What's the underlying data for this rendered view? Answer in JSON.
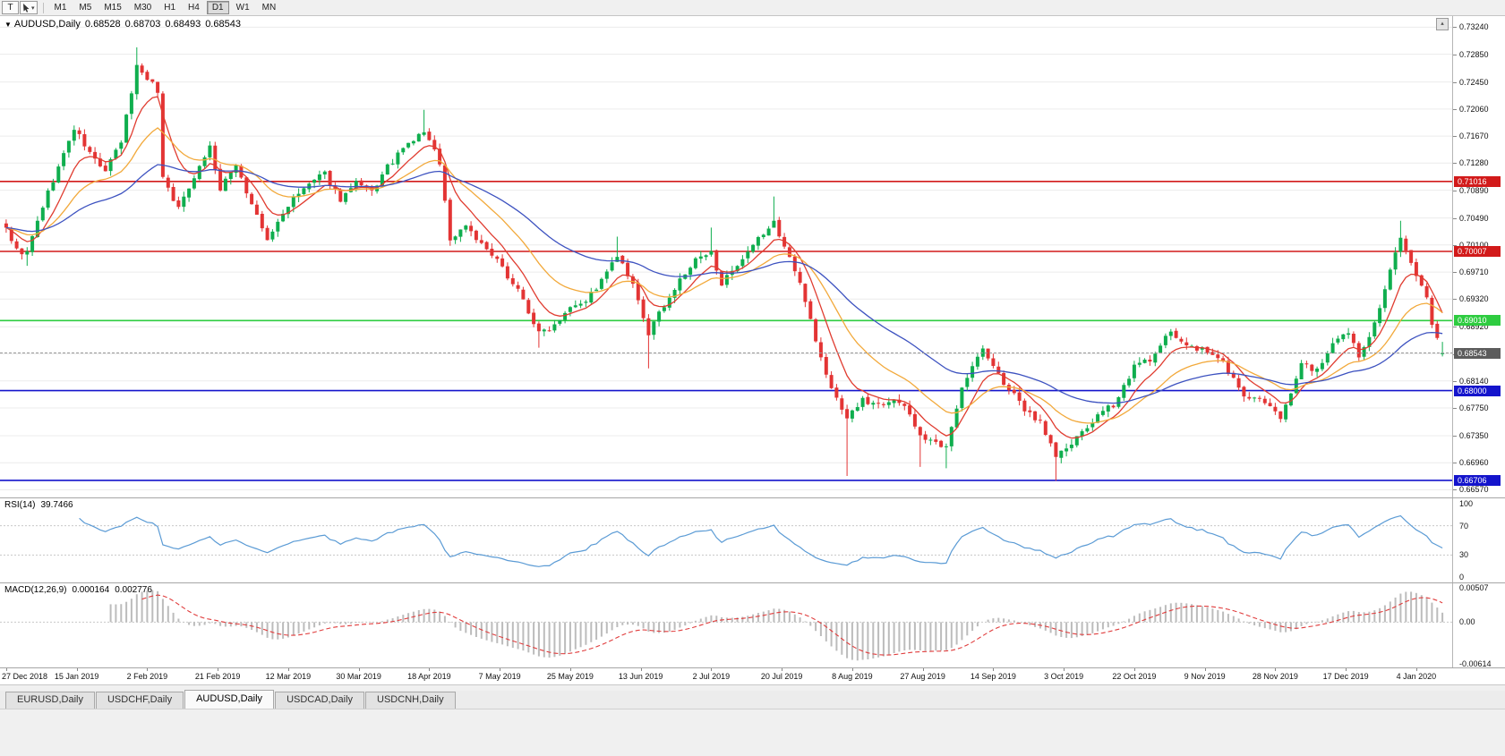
{
  "toolbar": {
    "chart_tool_label": "T",
    "pointer_caret": "▾",
    "timeframes": [
      "M1",
      "M5",
      "M15",
      "M30",
      "H1",
      "H4",
      "D1",
      "W1",
      "MN"
    ],
    "active_timeframe": "D1"
  },
  "symbol_header": {
    "collapse_icon": "▼",
    "symbol": "AUDUSD,Daily",
    "open": "0.68528",
    "high": "0.68703",
    "low": "0.68493",
    "close": "0.68543"
  },
  "scale_button_glyph": "▴",
  "price_axis": {
    "ticks": [
      "0.73240",
      "0.72850",
      "0.72450",
      "0.72060",
      "0.71670",
      "0.71280",
      "0.70890",
      "0.70490",
      "0.70100",
      "0.69710",
      "0.69320",
      "0.68920",
      "0.68530",
      "0.68140",
      "0.67750",
      "0.67350",
      "0.66960",
      "0.66570"
    ]
  },
  "levels": [
    {
      "label": "0.71016",
      "price": 0.71016,
      "color": "#d21a1a"
    },
    {
      "label": "0.70007",
      "price": 0.70007,
      "color": "#d21a1a"
    },
    {
      "label": "0.69010",
      "price": 0.6901,
      "color": "#2ecc40"
    },
    {
      "label": "0.68000",
      "price": 0.68,
      "color": "#1414cc"
    },
    {
      "label": "0.66706",
      "price": 0.66706,
      "color": "#1414cc"
    }
  ],
  "current_price": {
    "label": "0.68543",
    "price": 0.68543,
    "badge_color": "#5c5c5c"
  },
  "date_axis": [
    "27 Dec 2018",
    "15 Jan 2019",
    "2 Feb 2019",
    "21 Feb 2019",
    "12 Mar 2019",
    "30 Mar 2019",
    "18 Apr 2019",
    "7 May 2019",
    "25 May 2019",
    "13 Jun 2019",
    "2 Jul 2019",
    "20 Jul 2019",
    "8 Aug 2019",
    "27 Aug 2019",
    "14 Sep 2019",
    "3 Oct 2019",
    "22 Oct 2019",
    "9 Nov 2019",
    "28 Nov 2019",
    "17 Dec 2019",
    "4 Jan 2020"
  ],
  "chart_data": {
    "type": "candlestick",
    "title": "AUDUSD,Daily",
    "n": 276,
    "date_tick_step": 13.5,
    "ylim": [
      0.6646,
      0.734
    ],
    "up_color": "#0fae4e",
    "down_color": "#e33434",
    "noise": 0.0009,
    "wick_amp": 0.0008,
    "price_path": [
      [
        0,
        0.7035
      ],
      [
        2,
        0.7002
      ],
      [
        4,
        0.6998
      ],
      [
        7,
        0.7066
      ],
      [
        10,
        0.7122
      ],
      [
        13,
        0.7178
      ],
      [
        16,
        0.7142
      ],
      [
        19,
        0.7116
      ],
      [
        22,
        0.7158
      ],
      [
        25,
        0.7268
      ],
      [
        27,
        0.7252
      ],
      [
        29,
        0.7232
      ],
      [
        30,
        0.7108
      ],
      [
        33,
        0.7062
      ],
      [
        36,
        0.711
      ],
      [
        39,
        0.7152
      ],
      [
        41,
        0.7088
      ],
      [
        44,
        0.7128
      ],
      [
        46,
        0.7086
      ],
      [
        50,
        0.7016
      ],
      [
        54,
        0.7068
      ],
      [
        58,
        0.7098
      ],
      [
        61,
        0.7112
      ],
      [
        64,
        0.7076
      ],
      [
        67,
        0.7098
      ],
      [
        70,
        0.7086
      ],
      [
        73,
        0.7122
      ],
      [
        76,
        0.7148
      ],
      [
        80,
        0.7174
      ],
      [
        83,
        0.713
      ],
      [
        85,
        0.7016
      ],
      [
        88,
        0.704
      ],
      [
        91,
        0.701
      ],
      [
        94,
        0.6986
      ],
      [
        98,
        0.6946
      ],
      [
        102,
        0.6882
      ],
      [
        105,
        0.6896
      ],
      [
        108,
        0.6924
      ],
      [
        111,
        0.693
      ],
      [
        114,
        0.6958
      ],
      [
        117,
        0.6994
      ],
      [
        120,
        0.695
      ],
      [
        123,
        0.6882
      ],
      [
        126,
        0.6924
      ],
      [
        129,
        0.6958
      ],
      [
        132,
        0.6988
      ],
      [
        135,
        0.6998
      ],
      [
        137,
        0.6956
      ],
      [
        140,
        0.6976
      ],
      [
        144,
        0.7018
      ],
      [
        147,
        0.7042
      ],
      [
        150,
        0.6992
      ],
      [
        153,
        0.6932
      ],
      [
        156,
        0.6846
      ],
      [
        158,
        0.6802
      ],
      [
        161,
        0.6762
      ],
      [
        164,
        0.6786
      ],
      [
        167,
        0.678
      ],
      [
        170,
        0.679
      ],
      [
        173,
        0.6766
      ],
      [
        175,
        0.6736
      ],
      [
        178,
        0.6722
      ],
      [
        180,
        0.6716
      ],
      [
        183,
        0.6808
      ],
      [
        187,
        0.686
      ],
      [
        190,
        0.6822
      ],
      [
        195,
        0.6772
      ],
      [
        198,
        0.6756
      ],
      [
        201,
        0.6706
      ],
      [
        204,
        0.6722
      ],
      [
        208,
        0.6756
      ],
      [
        212,
        0.678
      ],
      [
        216,
        0.6834
      ],
      [
        220,
        0.685
      ],
      [
        223,
        0.6888
      ],
      [
        226,
        0.6864
      ],
      [
        230,
        0.6856
      ],
      [
        233,
        0.684
      ],
      [
        237,
        0.6792
      ],
      [
        240,
        0.6786
      ],
      [
        244,
        0.6762
      ],
      [
        248,
        0.6838
      ],
      [
        251,
        0.683
      ],
      [
        254,
        0.6864
      ],
      [
        257,
        0.6884
      ],
      [
        259,
        0.6848
      ],
      [
        262,
        0.6898
      ],
      [
        264,
        0.6944
      ],
      [
        266,
        0.6998
      ],
      [
        267,
        0.7018
      ],
      [
        269,
        0.6986
      ],
      [
        271,
        0.695
      ],
      [
        272,
        0.6936
      ],
      [
        273,
        0.6896
      ],
      [
        274,
        0.6872
      ],
      [
        275,
        0.68543
      ]
    ],
    "wick_lows": [
      [
        4,
        0.698
      ],
      [
        102,
        0.6862
      ],
      [
        123,
        0.6832
      ],
      [
        161,
        0.6677
      ],
      [
        175,
        0.669
      ],
      [
        180,
        0.6688
      ],
      [
        201,
        0.667
      ],
      [
        244,
        0.6754
      ]
    ],
    "wick_highs": [
      [
        25,
        0.7295
      ],
      [
        80,
        0.7205
      ],
      [
        117,
        0.7022
      ],
      [
        135,
        0.7035
      ],
      [
        147,
        0.708
      ],
      [
        267,
        0.7045
      ]
    ],
    "last_candle": {
      "open": 0.68528,
      "high": 0.68703,
      "low": 0.68493,
      "close": 0.68543
    },
    "moving_averages": [
      {
        "name": "fast-ma",
        "period": 8,
        "color": "#e03c30"
      },
      {
        "name": "medium-ma",
        "period": 20,
        "color": "#f2a93b"
      },
      {
        "name": "slow-ma",
        "period": 45,
        "color": "#3d52c0"
      }
    ]
  },
  "rsi": {
    "label": "RSI(14)",
    "value": "39.7466",
    "axis": [
      "100",
      "70",
      "30",
      "0"
    ],
    "level_lines": [
      70,
      30
    ],
    "line_color": "#5b9bd5"
  },
  "macd": {
    "label": "MACD(12,26,9)",
    "main_value": "0.000164",
    "signal_value": "0.002776",
    "axis": [
      "0.00507",
      "0.00",
      "-0.00614"
    ],
    "range": [
      -0.00614,
      0.00507
    ],
    "hist_color": "#bcbcbc",
    "signal_color": "#e03c3c"
  },
  "tabs": {
    "items": [
      "EURUSD,Daily",
      "USDCHF,Daily",
      "AUDUSD,Daily",
      "USDCAD,Daily",
      "USDCNH,Daily"
    ],
    "active_index": 2
  }
}
